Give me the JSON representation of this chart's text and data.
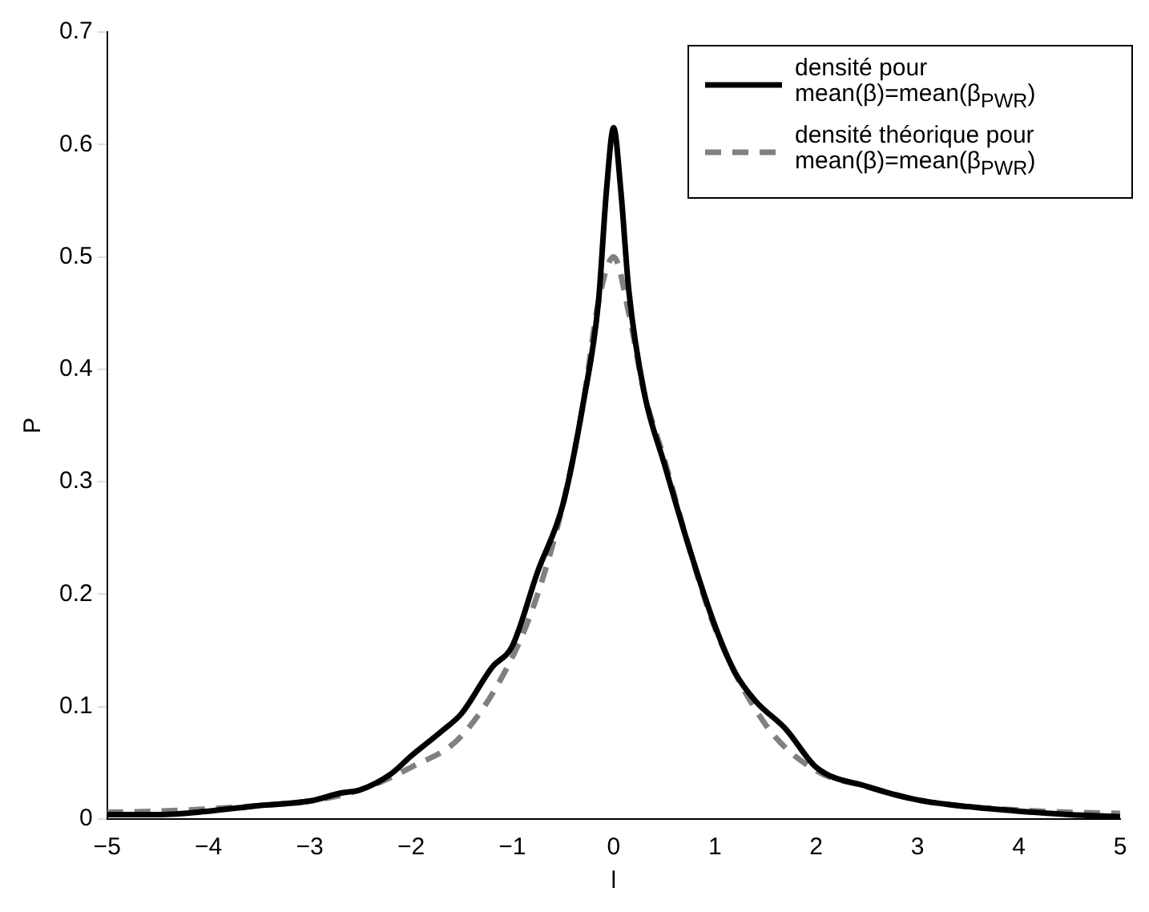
{
  "chart_data": {
    "type": "line",
    "xlabel": "l",
    "ylabel": "P",
    "xlim": [
      -5,
      5
    ],
    "ylim": [
      0,
      0.7
    ],
    "xticks": [
      -5,
      -4,
      -3,
      -2,
      -1,
      0,
      1,
      2,
      3,
      4,
      5
    ],
    "yticks": [
      0,
      0.1,
      0.2,
      0.3,
      0.4,
      0.5,
      0.6,
      0.7
    ],
    "legend": "top right",
    "grid": false,
    "series": [
      {
        "name": "densité pour mean(β)=mean(β$_{PWR}$)",
        "color": "#000000",
        "line_style": "solid",
        "x": [
          -5,
          -4.5,
          -4,
          -3.5,
          -3,
          -2.7,
          -2.5,
          -2.2,
          -2,
          -1.7,
          -1.5,
          -1.2,
          -1,
          -0.75,
          -0.5,
          -0.3,
          -0.15,
          -0.07,
          0,
          0.07,
          0.15,
          0.3,
          0.5,
          0.75,
          1,
          1.2,
          1.4,
          1.7,
          2,
          2.5,
          3,
          3.5,
          4,
          4.5,
          5
        ],
        "values": [
          0.004,
          0.004,
          0.007,
          0.012,
          0.016,
          0.023,
          0.026,
          0.04,
          0.056,
          0.078,
          0.094,
          0.135,
          0.154,
          0.22,
          0.28,
          0.37,
          0.46,
          0.56,
          0.615,
          0.56,
          0.47,
          0.38,
          0.316,
          0.24,
          0.172,
          0.13,
          0.105,
          0.08,
          0.046,
          0.029,
          0.017,
          0.011,
          0.007,
          0.004,
          0.002
        ]
      },
      {
        "name": "densité théorique pour mean(β)=mean(β$_{PWR}$)",
        "color": "#808080",
        "line_style": "dashed",
        "x": [
          -5,
          -4.5,
          -4,
          -3.5,
          -3,
          -2.5,
          -2,
          -1.5,
          -1,
          -0.75,
          -0.5,
          -0.3,
          -0.15,
          0,
          0.15,
          0.3,
          0.5,
          0.75,
          1,
          1.5,
          2,
          2.5,
          3,
          3.5,
          4,
          4.5,
          5
        ],
        "values": [
          0.006,
          0.007,
          0.009,
          0.012,
          0.016,
          0.026,
          0.046,
          0.074,
          0.144,
          0.2,
          0.28,
          0.37,
          0.46,
          0.5,
          0.45,
          0.38,
          0.32,
          0.24,
          0.17,
          0.084,
          0.043,
          0.029,
          0.017,
          0.011,
          0.008,
          0.006,
          0.005
        ]
      }
    ]
  }
}
